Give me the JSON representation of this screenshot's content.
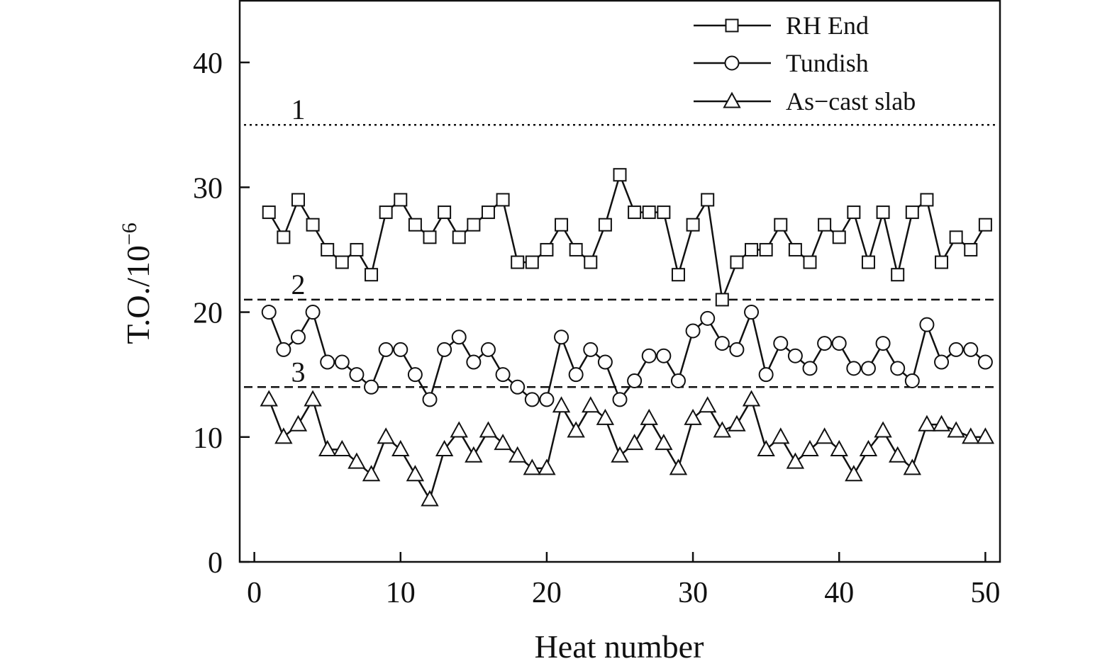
{
  "chart_data": {
    "type": "line",
    "xlabel": "Heat number",
    "ylabel": "T.O./10",
    "ylabel_exponent": "−6",
    "xlim": [
      -1,
      51
    ],
    "ylim": [
      0,
      45
    ],
    "xticks": [
      0,
      10,
      20,
      30,
      40,
      50
    ],
    "yticks": [
      0,
      10,
      20,
      30,
      40
    ],
    "xtick_labels": [
      "0",
      "10",
      "20",
      "30",
      "40",
      "50"
    ],
    "ytick_labels": [
      "0",
      "10",
      "20",
      "30",
      "40"
    ],
    "grid": false,
    "legend_position": "top-right",
    "x": [
      1,
      2,
      3,
      4,
      5,
      6,
      7,
      8,
      9,
      10,
      11,
      12,
      13,
      14,
      15,
      16,
      17,
      18,
      19,
      20,
      21,
      22,
      23,
      24,
      25,
      26,
      27,
      28,
      29,
      30,
      31,
      32,
      33,
      34,
      35,
      36,
      37,
      38,
      39,
      40,
      41,
      42,
      43,
      44,
      45,
      46,
      47,
      48,
      49,
      50
    ],
    "series": [
      {
        "name": "RH End",
        "marker": "square",
        "values": [
          28,
          26,
          29,
          27,
          25,
          24,
          25,
          23,
          28,
          29,
          27,
          26,
          28,
          26,
          27,
          28,
          29,
          24,
          24,
          25,
          27,
          25,
          24,
          27,
          31,
          28,
          28,
          28,
          23,
          27,
          29,
          21,
          24,
          25,
          25,
          27,
          25,
          24,
          27,
          26,
          28,
          24,
          28,
          23,
          28,
          29,
          24,
          26,
          25,
          27
        ]
      },
      {
        "name": "Tundish",
        "marker": "circle",
        "values": [
          20,
          17,
          18,
          20,
          16,
          16,
          15,
          14,
          17,
          17,
          15,
          13,
          17,
          18,
          16,
          17,
          15,
          14,
          13,
          13,
          18,
          15,
          17,
          16,
          13,
          14.5,
          16.5,
          16.5,
          14.5,
          18.5,
          19.5,
          17.5,
          17,
          20,
          15,
          17.5,
          16.5,
          15.5,
          17.5,
          17.5,
          15.5,
          15.5,
          17.5,
          15.5,
          14.5,
          19,
          16,
          17,
          17,
          16
        ]
      },
      {
        "name": "As−cast slab",
        "marker": "triangle",
        "values": [
          13,
          10,
          11,
          13,
          9,
          9,
          8,
          7,
          10,
          9,
          7,
          5,
          9,
          10.5,
          8.5,
          10.5,
          9.5,
          8.5,
          7.5,
          7.5,
          12.5,
          10.5,
          12.5,
          11.5,
          8.5,
          9.5,
          11.5,
          9.5,
          7.5,
          11.5,
          12.5,
          10.5,
          11,
          13,
          9,
          10,
          8,
          9,
          10,
          9,
          7,
          9,
          10.5,
          8.5,
          7.5,
          11,
          11,
          10.5,
          10,
          10
        ]
      }
    ],
    "reference_lines": [
      {
        "label": "1",
        "y": 35,
        "style": "dotted"
      },
      {
        "label": "2",
        "y": 21,
        "style": "dashed"
      },
      {
        "label": "3",
        "y": 14,
        "style": "dashed"
      }
    ]
  }
}
